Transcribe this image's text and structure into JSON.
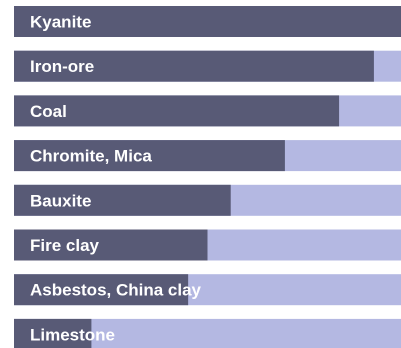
{
  "chart_data": {
    "type": "bar",
    "orientation": "horizontal",
    "categories": [
      "Kyanite",
      "Iron-ore",
      "Coal",
      "Chromite, Mica",
      "Bauxite",
      "Fire clay",
      "Asbestos, China clay",
      "Limestone"
    ],
    "values": [
      100,
      93,
      84,
      70,
      56,
      50,
      45,
      20
    ],
    "xlim": [
      0,
      100
    ],
    "title": "",
    "xlabel": "",
    "ylabel": "",
    "grid": false,
    "legend": "none",
    "colors": {
      "bar": "#585a76",
      "track": "#b4b8e2"
    }
  }
}
